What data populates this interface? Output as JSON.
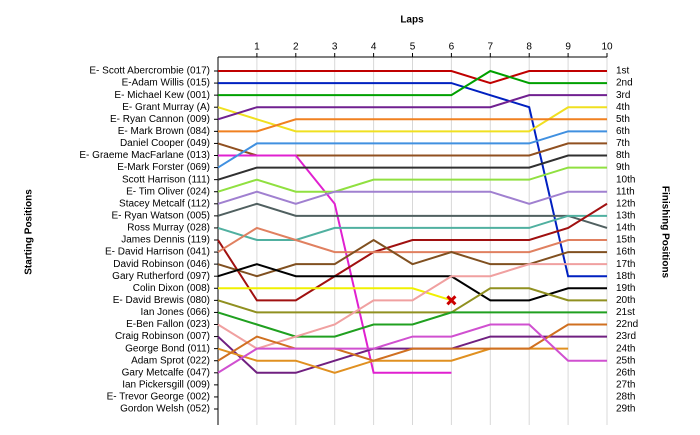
{
  "chart_data": {
    "type": "line",
    "x_label": "Laps",
    "y_label": "Starting Positions",
    "y2_label": "Finishing Positions",
    "x": [
      0,
      1,
      2,
      3,
      4,
      5,
      6,
      7,
      8,
      9,
      10
    ],
    "xlim": [
      0,
      10
    ],
    "xticks": [
      1,
      2,
      3,
      4,
      5,
      6,
      7,
      8,
      9,
      10
    ],
    "ylim": [
      1,
      29
    ],
    "grid": true,
    "finish_labels": [
      "1st",
      "2nd",
      "3rd",
      "4th",
      "5th",
      "6th",
      "7th",
      "8th",
      "9th",
      "10th",
      "11th",
      "12th",
      "13th",
      "14th",
      "15th",
      "16th",
      "17th",
      "18th",
      "19th",
      "20th",
      "21st",
      "22nd",
      "23rd",
      "24th",
      "25th",
      "26th",
      "27th",
      "28th",
      "29th"
    ],
    "series": [
      {
        "name": "E- Scott Abercrombie (017)",
        "color": "#c00000",
        "values": [
          1,
          1,
          1,
          1,
          1,
          1,
          1,
          2,
          1,
          1,
          1
        ]
      },
      {
        "name": "E-Adam Willis (015)",
        "color": "#0020c0",
        "values": [
          2,
          2,
          2,
          2,
          2,
          2,
          2,
          3,
          4,
          18,
          18
        ]
      },
      {
        "name": "E- Michael Kew (001)",
        "color": "#00a000",
        "values": [
          3,
          3,
          3,
          3,
          3,
          3,
          3,
          1,
          2,
          2,
          2
        ]
      },
      {
        "name": "E- Grant Murray (A)",
        "color": "#f0e020",
        "values": [
          4,
          5,
          6,
          6,
          6,
          6,
          6,
          6,
          6,
          4,
          4
        ]
      },
      {
        "name": "E- Ryan Cannon (009)",
        "color": "#702090",
        "values": [
          5,
          4,
          4,
          4,
          4,
          4,
          4,
          4,
          3,
          3,
          3
        ]
      },
      {
        "name": "E- Mark Brown (084)",
        "color": "#f08020",
        "values": [
          6,
          6,
          5,
          5,
          5,
          5,
          5,
          5,
          5,
          5,
          5
        ]
      },
      {
        "name": "Daniel Cooper (049)",
        "color": "#905020",
        "values": [
          7,
          8,
          8,
          8,
          8,
          8,
          8,
          8,
          8,
          7,
          7
        ]
      },
      {
        "name": "E- Graeme MacFarlane (013)",
        "color": "#e020d0",
        "values": [
          8,
          8,
          8,
          12,
          26,
          26,
          26,
          null,
          null,
          null,
          null
        ]
      },
      {
        "name": "E-Mark Forster (069)",
        "color": "#4090e0",
        "values": [
          9,
          7,
          7,
          7,
          7,
          7,
          7,
          7,
          7,
          6,
          6
        ]
      },
      {
        "name": "Scott Harrison (111)",
        "color": "#303030",
        "values": [
          10,
          9,
          9,
          9,
          9,
          9,
          9,
          9,
          9,
          8,
          8
        ]
      },
      {
        "name": "E- Tim Oliver (024)",
        "color": "#90e040",
        "values": [
          11,
          10,
          11,
          11,
          10,
          10,
          10,
          10,
          10,
          9,
          9
        ]
      },
      {
        "name": "Stacey Metcalf (112)",
        "color": "#a080d0",
        "values": [
          12,
          11,
          12,
          11,
          11,
          11,
          11,
          11,
          12,
          11,
          11
        ]
      },
      {
        "name": "E- Ryan Watson (005)",
        "color": "#506060",
        "values": [
          13,
          12,
          13,
          13,
          13,
          13,
          13,
          13,
          13,
          13,
          14
        ]
      },
      {
        "name": "Ross Murray (028)",
        "color": "#50b0a0",
        "values": [
          14,
          15,
          15,
          14,
          14,
          14,
          14,
          14,
          14,
          13,
          13
        ]
      },
      {
        "name": "James Dennis (119)",
        "color": "#a01010",
        "values": [
          15,
          20,
          20,
          18,
          16,
          15,
          15,
          15,
          15,
          14,
          12
        ]
      },
      {
        "name": "E- David Harrison (041)",
        "color": "#e08060",
        "values": [
          16,
          14,
          15,
          16,
          16,
          16,
          16,
          16,
          16,
          15,
          15
        ]
      },
      {
        "name": "David Robinson (046)",
        "color": "#805020",
        "values": [
          17,
          18,
          17,
          17,
          15,
          17,
          16,
          17,
          17,
          16,
          16
        ]
      },
      {
        "name": "Gary Rutherford (097)",
        "color": "#000000",
        "values": [
          18,
          17,
          18,
          18,
          18,
          18,
          18,
          20,
          20,
          19,
          19
        ]
      },
      {
        "name": "Colin Dixon (008)",
        "color": "#f0f000",
        "end_marker": "x",
        "values": [
          19,
          19,
          19,
          19,
          19,
          19,
          20,
          null,
          null,
          null,
          null
        ]
      },
      {
        "name": "E- David Brewis (080)",
        "color": "#909020",
        "values": [
          20,
          21,
          21,
          21,
          21,
          21,
          21,
          19,
          19,
          20,
          20
        ]
      },
      {
        "name": "Ian Jones (066)",
        "color": "#20a020",
        "values": [
          21,
          22,
          23,
          23,
          22,
          22,
          21,
          21,
          21,
          21,
          21
        ]
      },
      {
        "name": "E-Ben Fallon (023)",
        "color": "#f0a0a0",
        "values": [
          22,
          24,
          23,
          22,
          20,
          20,
          18,
          18,
          17,
          17,
          17
        ]
      },
      {
        "name": "Craig Robinson (007)",
        "color": "#702080",
        "values": [
          23,
          26,
          26,
          25,
          24,
          24,
          24,
          23,
          23,
          23,
          23
        ]
      },
      {
        "name": "George Bond (011)",
        "color": "#e09020",
        "values": [
          24,
          25,
          25,
          26,
          25,
          25,
          25,
          24,
          24,
          24,
          null
        ]
      },
      {
        "name": "Adam Sprot (022)",
        "color": "#d07020",
        "values": [
          25,
          23,
          24,
          24,
          25,
          24,
          24,
          24,
          24,
          22,
          22
        ]
      },
      {
        "name": "Gary Metcalfe (047)",
        "color": "#d050d0",
        "values": [
          26,
          24,
          24,
          24,
          24,
          23,
          23,
          22,
          22,
          25,
          25
        ]
      },
      {
        "name": "Ian Pickersgill (009)",
        "color": "#808080",
        "values": [
          27,
          null,
          null,
          null,
          null,
          null,
          null,
          null,
          null,
          null,
          null
        ]
      },
      {
        "name": "E- Trevor George (002)",
        "color": "#808080",
        "values": [
          28,
          null,
          null,
          null,
          null,
          null,
          null,
          null,
          null,
          null,
          null
        ]
      },
      {
        "name": "Gordon Welsh (052)",
        "color": "#808080",
        "values": [
          29,
          null,
          null,
          null,
          null,
          null,
          null,
          null,
          null,
          null,
          null
        ]
      }
    ]
  }
}
